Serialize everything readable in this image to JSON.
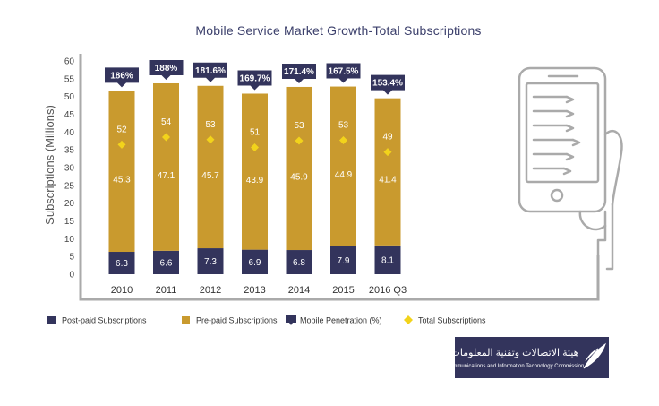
{
  "chart_data": {
    "type": "bar",
    "stacked": true,
    "title": "Mobile Service Market Growth-Total Subscriptions",
    "ylabel": "Subscriptions (Millions)",
    "xlabel": "",
    "ylim": [
      0,
      60
    ],
    "yticks": [
      0,
      5,
      10,
      15,
      20,
      25,
      30,
      35,
      40,
      45,
      50,
      55,
      60
    ],
    "categories": [
      "2010",
      "2011",
      "2012",
      "2013",
      "2014",
      "2015",
      "2016 Q3"
    ],
    "series": [
      {
        "name": "Post-paid Subscriptions",
        "color": "#33345c",
        "values": [
          6.3,
          6.6,
          7.3,
          6.9,
          6.8,
          7.9,
          8.1
        ]
      },
      {
        "name": "Pre-paid Subscriptions",
        "color": "#c99a2e",
        "values": [
          45.3,
          47.1,
          45.7,
          43.9,
          45.9,
          44.9,
          41.4
        ]
      }
    ],
    "total_subscriptions": {
      "name": "Total Subscriptions",
      "color": "#f2d31b",
      "values": [
        52,
        54,
        53,
        51,
        53,
        53,
        49
      ],
      "labels": [
        "52",
        "54",
        "53",
        "51",
        "53",
        "53",
        "49"
      ]
    },
    "mobile_penetration": {
      "name": "Mobile Penetration (%)",
      "color": "#33345c",
      "labels": [
        "186%",
        "188%",
        "181.6%",
        "169.7%",
        "171.4%",
        "167.5%",
        "153.4%"
      ]
    },
    "legend_position": "bottom",
    "grid": false
  },
  "logo": {
    "arabic_text": "هيئة الاتصالات وتقنية المعلومات",
    "english_text": "Communications and Information Technology Commission",
    "background": "#33345c"
  },
  "colors": {
    "frame": "#aaaaaa",
    "illustration": "#aaaaaa"
  }
}
